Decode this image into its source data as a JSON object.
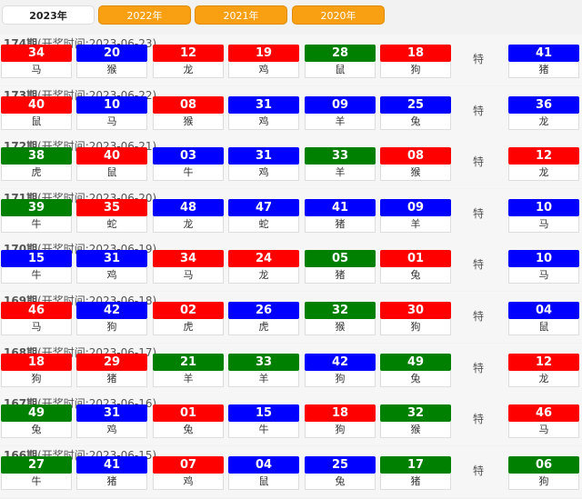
{
  "tabs": [
    "2023年",
    "2022年",
    "2021年",
    "2020年"
  ],
  "active_tab": 0,
  "colors": {
    "red": "#ff0000",
    "blue": "#0000ff",
    "green": "#008000",
    "tab_orange": "#f99f12"
  },
  "special_label": "特",
  "draws": [
    {
      "period": "174期",
      "time": "(开奖时间:2023-06-23)",
      "balls": [
        [
          "34",
          "red",
          "马"
        ],
        [
          "20",
          "blue",
          "猴"
        ],
        [
          "12",
          "red",
          "龙"
        ],
        [
          "19",
          "red",
          "鸡"
        ],
        [
          "28",
          "green",
          "鼠"
        ],
        [
          "18",
          "red",
          "狗"
        ],
        [
          "41",
          "blue",
          "猪"
        ]
      ]
    },
    {
      "period": "173期",
      "time": "(开奖时间:2023-06-22)",
      "balls": [
        [
          "40",
          "red",
          "鼠"
        ],
        [
          "10",
          "blue",
          "马"
        ],
        [
          "08",
          "red",
          "猴"
        ],
        [
          "31",
          "blue",
          "鸡"
        ],
        [
          "09",
          "blue",
          "羊"
        ],
        [
          "25",
          "blue",
          "兔"
        ],
        [
          "36",
          "blue",
          "龙"
        ]
      ]
    },
    {
      "period": "172期",
      "time": "(开奖时间:2023-06-21)",
      "balls": [
        [
          "38",
          "green",
          "虎"
        ],
        [
          "40",
          "red",
          "鼠"
        ],
        [
          "03",
          "blue",
          "牛"
        ],
        [
          "31",
          "blue",
          "鸡"
        ],
        [
          "33",
          "green",
          "羊"
        ],
        [
          "08",
          "red",
          "猴"
        ],
        [
          "12",
          "red",
          "龙"
        ]
      ]
    },
    {
      "period": "171期",
      "time": "(开奖时间:2023-06-20)",
      "balls": [
        [
          "39",
          "green",
          "牛"
        ],
        [
          "35",
          "red",
          "蛇"
        ],
        [
          "48",
          "blue",
          "龙"
        ],
        [
          "47",
          "blue",
          "蛇"
        ],
        [
          "41",
          "blue",
          "猪"
        ],
        [
          "09",
          "blue",
          "羊"
        ],
        [
          "10",
          "blue",
          "马"
        ]
      ]
    },
    {
      "period": "170期",
      "time": "(开奖时间:2023-06-19)",
      "balls": [
        [
          "15",
          "blue",
          "牛"
        ],
        [
          "31",
          "blue",
          "鸡"
        ],
        [
          "34",
          "red",
          "马"
        ],
        [
          "24",
          "red",
          "龙"
        ],
        [
          "05",
          "green",
          "猪"
        ],
        [
          "01",
          "red",
          "兔"
        ],
        [
          "10",
          "blue",
          "马"
        ]
      ]
    },
    {
      "period": "169期",
      "time": "(开奖时间:2023-06-18)",
      "balls": [
        [
          "46",
          "red",
          "马"
        ],
        [
          "42",
          "blue",
          "狗"
        ],
        [
          "02",
          "red",
          "虎"
        ],
        [
          "26",
          "blue",
          "虎"
        ],
        [
          "32",
          "green",
          "猴"
        ],
        [
          "30",
          "red",
          "狗"
        ],
        [
          "04",
          "blue",
          "鼠"
        ]
      ]
    },
    {
      "period": "168期",
      "time": "(开奖时间:2023-06-17)",
      "balls": [
        [
          "18",
          "red",
          "狗"
        ],
        [
          "29",
          "red",
          "猪"
        ],
        [
          "21",
          "green",
          "羊"
        ],
        [
          "33",
          "green",
          "羊"
        ],
        [
          "42",
          "blue",
          "狗"
        ],
        [
          "49",
          "green",
          "兔"
        ],
        [
          "12",
          "red",
          "龙"
        ]
      ]
    },
    {
      "period": "167期",
      "time": "(开奖时间:2023-06-16)",
      "balls": [
        [
          "49",
          "green",
          "兔"
        ],
        [
          "31",
          "blue",
          "鸡"
        ],
        [
          "01",
          "red",
          "兔"
        ],
        [
          "15",
          "blue",
          "牛"
        ],
        [
          "18",
          "red",
          "狗"
        ],
        [
          "32",
          "green",
          "猴"
        ],
        [
          "46",
          "red",
          "马"
        ]
      ]
    },
    {
      "period": "166期",
      "time": "(开奖时间:2023-06-15)",
      "balls": [
        [
          "27",
          "green",
          "牛"
        ],
        [
          "41",
          "blue",
          "猪"
        ],
        [
          "07",
          "red",
          "鸡"
        ],
        [
          "04",
          "blue",
          "鼠"
        ],
        [
          "25",
          "blue",
          "兔"
        ],
        [
          "17",
          "green",
          "猪"
        ],
        [
          "06",
          "green",
          "狗"
        ]
      ]
    }
  ]
}
